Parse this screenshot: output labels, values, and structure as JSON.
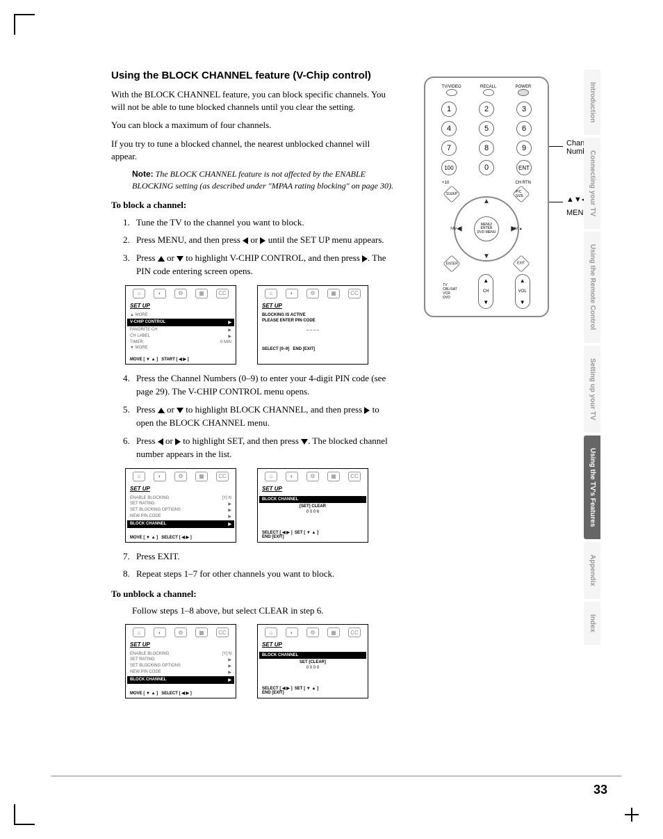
{
  "heading": "Using the BLOCK CHANNEL feature (V-Chip control)",
  "intro": {
    "p1": "With the BLOCK CHANNEL feature, you can block specific channels. You will not be able to tune blocked channels until you clear the setting.",
    "p2": "You can block a maximum of four channels.",
    "p3": "If you try to tune a blocked channel, the nearest unblocked channel will appear."
  },
  "note": {
    "label": "Note:",
    "text": "The BLOCK CHANNEL feature is not affected by the ENABLE BLOCKING setting (as described under \"MPAA rating blocking\" on page 30)."
  },
  "block": {
    "title": "To block a channel:",
    "s1": "Tune the TV to the channel you want to block.",
    "s2a": "Press MENU, and then press ",
    "s2b": " or ",
    "s2c": " until the SET UP menu appears.",
    "s3a": "Press ",
    "s3b": " or ",
    "s3c": " to highlight V-CHIP CONTROL, and then press ",
    "s3d": ". The PIN code entering screen opens.",
    "s4": "Press the Channel Numbers (0–9) to enter your 4-digit PIN code (see page 29). The V-CHIP CONTROL menu opens.",
    "s5a": "Press ",
    "s5b": " or ",
    "s5c": " to highlight BLOCK CHANNEL, and then press ",
    "s5d": " to open the BLOCK CHANNEL menu.",
    "s6a": "Press ",
    "s6b": " or ",
    "s6c": " to highlight SET, and then press ",
    "s6d": ". The blocked channel number appears in the list.",
    "s7": "Press EXIT.",
    "s8": "Repeat steps 1–7 for other channels you want to block."
  },
  "unblock": {
    "title": "To unblock a channel:",
    "text": "Follow steps 1–8 above, but select CLEAR in step 6."
  },
  "screens": {
    "setup": "SET UP",
    "more_up": "▲ MORE",
    "vchip": "V-CHIP CONTROL",
    "favch": "FAVORITE CH",
    "chlabel": "CH LABEL",
    "timer": "TIMER:",
    "timer_val": "0 MIN",
    "more_dn": "▼ MORE",
    "move": "MOVE [ ▼ ▲ ]",
    "start": "START [ ◀ ▶ ]",
    "blocking_active": "BLOCKING IS ACTIVE",
    "enter_pin": "PLEASE ENTER PIN CODE",
    "dashes": "– – – –",
    "select09": "SELECT [0–9]",
    "endexit": "END [EXIT]",
    "enable": "ENABLE BLOCKING",
    "enable_val": "[Y] N",
    "setrating": "SET RATING",
    "setblockopt": "SET BLOCKING OPTIONS",
    "newpin": "NEW PIN CODE",
    "blockch": "BLOCK CHANNEL",
    "select": "SELECT [ ◀ ▶ ]",
    "set_clear": "[SET]  CLEAR",
    "set_clear2": "SET  [CLEAR]",
    "slots6": "0     0     0     6",
    "slots0": "0     0     0     0",
    "selectlr": "SELECT [ ◀ ▶ ]",
    "setud": "SET [ ▼ ▲ ]"
  },
  "remote": {
    "tvvideo": "TV/VIDEO",
    "recall": "RECALL",
    "power": "POWER",
    "n1": "1",
    "n2": "2",
    "n3": "3",
    "n4": "4",
    "n5": "5",
    "n6": "6",
    "n7": "7",
    "n8": "8",
    "n9": "9",
    "n100": "100",
    "n0": "0",
    "ent": "ENT",
    "plus10": "+10",
    "chrtn": "CH RTN",
    "menu": "MENU/\nENTER\nDVD MENU",
    "fav_l": "FAV ▼",
    "fav_r": "FAV ▲",
    "sleep": "SLEEP",
    "pic": "PIC SIZE",
    "enter": "ENTER",
    "exit": "EXIT",
    "ch": "CH",
    "vol": "VOL",
    "devs": "TV\nCBL/SAT\nVCR\nDVD"
  },
  "callouts": {
    "ch_nums": "Channel Numbers",
    "arrows": "▲▼◀▶",
    "menu": "MENU"
  },
  "tabs": {
    "t1": "Introduction",
    "t2": "Connecting your TV",
    "t3": "Using the Remote Control",
    "t4": "Setting up your TV",
    "t5": "Using the TV's Features",
    "t6": "Appendix",
    "t7": "Index"
  },
  "page_num": "33"
}
